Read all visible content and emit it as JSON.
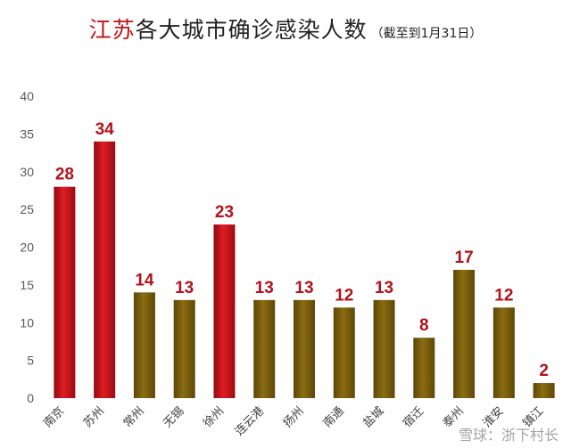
{
  "title": {
    "prefix": "江苏",
    "main": "各大城市确诊感染人数",
    "sub": "（截至到1月31日）"
  },
  "watermark": "雪球：浙下村长",
  "colors": {
    "highlight": "#c0141a",
    "normal": "#7a5e0a",
    "label": "#b3121a"
  },
  "chart_data": {
    "type": "bar",
    "title": "江苏各大城市确诊感染人数（截至到1月31日）",
    "categories": [
      "南京",
      "苏州",
      "常州",
      "无锡",
      "徐州",
      "连云港",
      "扬州",
      "南通",
      "盐城",
      "宿迁",
      "泰州",
      "淮安",
      "镇江"
    ],
    "values": [
      28,
      34,
      14,
      13,
      23,
      13,
      13,
      12,
      13,
      8,
      17,
      12,
      2
    ],
    "highlight": [
      true,
      true,
      false,
      false,
      true,
      false,
      false,
      false,
      false,
      false,
      false,
      false,
      false
    ],
    "ylim": [
      0,
      40
    ],
    "yticks": [
      0,
      5,
      10,
      15,
      20,
      25,
      30,
      35,
      40
    ],
    "grid": false,
    "legend": "none"
  }
}
